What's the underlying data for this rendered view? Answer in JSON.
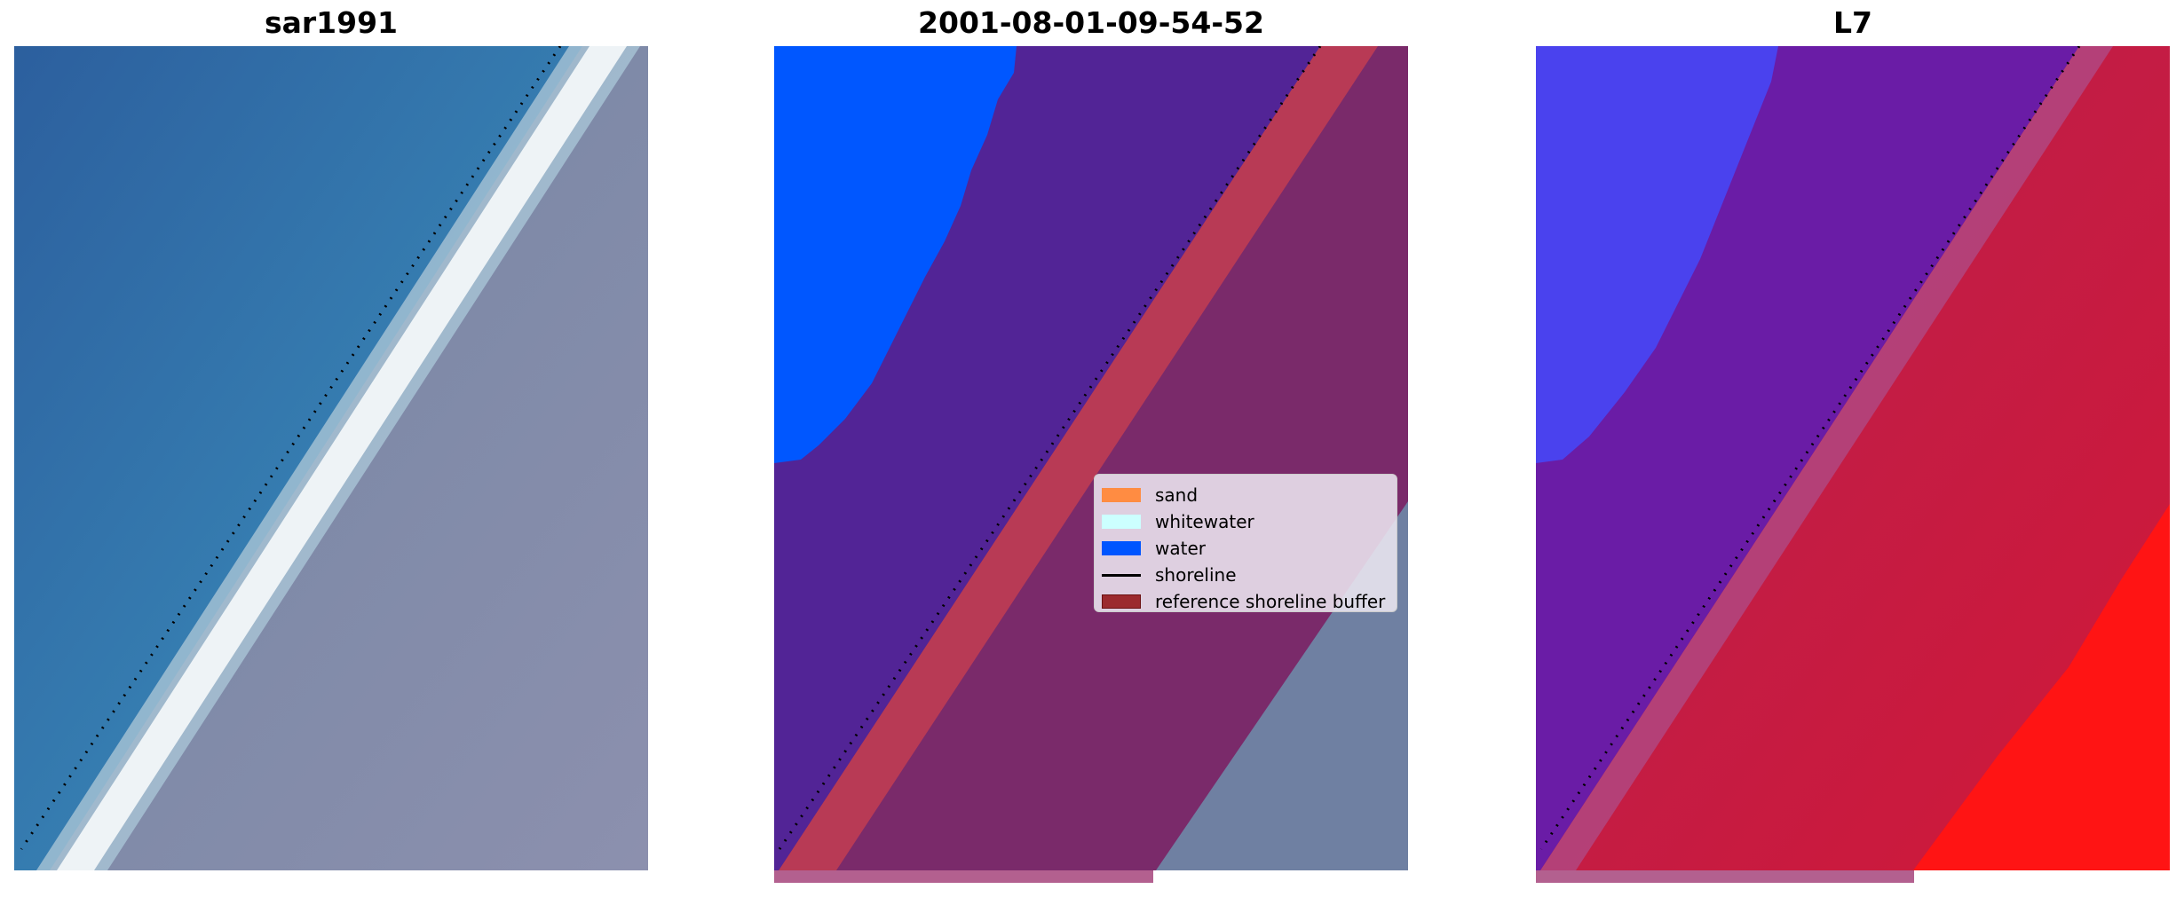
{
  "panels": [
    {
      "title": "sar1991",
      "content": "RGB satellite image with detected shoreline"
    },
    {
      "title": "2001-08-01-09-54-52",
      "content": "classified image overlay"
    },
    {
      "title": "L7",
      "content": "index image with detected shoreline"
    }
  ],
  "legend": {
    "items": [
      {
        "label": "sand",
        "color": "#ff8c42",
        "kind": "patch"
      },
      {
        "label": "whitewater",
        "color": "#ccffff",
        "kind": "patch"
      },
      {
        "label": "water",
        "color": "#0055ff",
        "kind": "patch"
      },
      {
        "label": "shoreline",
        "color": "#000000",
        "kind": "line"
      },
      {
        "label": "reference shoreline buffer",
        "color": "#9b2a2e",
        "kind": "patch"
      }
    ]
  }
}
